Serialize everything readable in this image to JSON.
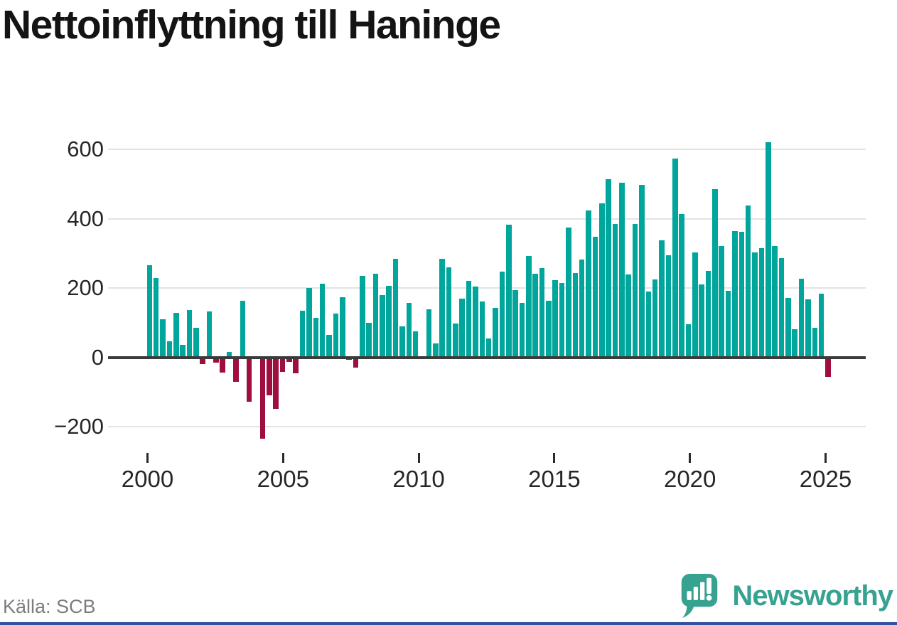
{
  "title": "Nettoinflyttning till Haninge",
  "source": "Källa: SCB",
  "brand": {
    "name": "Newsworthy",
    "color": "#38a291"
  },
  "colors": {
    "positive": "#00a59c",
    "negative": "#a00d3f",
    "grid": "#e3e3e3",
    "axis": "#3b3b3b",
    "tick_text": "#262626",
    "title_text": "#141414",
    "source_text": "#7d7d7d",
    "footer_strip": "#35519f"
  },
  "chart_data": {
    "type": "bar",
    "title": "Nettoinflyttning till Haninge",
    "frequency": "quarterly",
    "quarters": [
      "2000Q1",
      "2000Q2",
      "2000Q3",
      "2000Q4",
      "2001Q1",
      "2001Q2",
      "2001Q3",
      "2001Q4",
      "2002Q1",
      "2002Q2",
      "2002Q3",
      "2002Q4",
      "2003Q1",
      "2003Q2",
      "2003Q3",
      "2003Q4",
      "2004Q1",
      "2004Q2",
      "2004Q3",
      "2004Q4",
      "2005Q1",
      "2005Q2",
      "2005Q3",
      "2005Q4",
      "2006Q1",
      "2006Q2",
      "2006Q3",
      "2006Q4",
      "2007Q1",
      "2007Q2",
      "2007Q3",
      "2007Q4",
      "2008Q1",
      "2008Q2",
      "2008Q3",
      "2008Q4",
      "2009Q1",
      "2009Q2",
      "2009Q3",
      "2009Q4",
      "2010Q1",
      "2010Q2",
      "2010Q3",
      "2010Q4",
      "2011Q1",
      "2011Q2",
      "2011Q3",
      "2011Q4",
      "2012Q1",
      "2012Q2",
      "2012Q3",
      "2012Q4",
      "2013Q1",
      "2013Q2",
      "2013Q3",
      "2013Q4",
      "2014Q1",
      "2014Q2",
      "2014Q3",
      "2014Q4",
      "2015Q1",
      "2015Q2",
      "2015Q3",
      "2015Q4",
      "2016Q1",
      "2016Q2",
      "2016Q3",
      "2016Q4",
      "2017Q1",
      "2017Q2",
      "2017Q3",
      "2017Q4",
      "2018Q1",
      "2018Q2",
      "2018Q3",
      "2018Q4",
      "2019Q1",
      "2019Q2",
      "2019Q3",
      "2019Q4",
      "2020Q1",
      "2020Q2",
      "2020Q3",
      "2020Q4",
      "2021Q1",
      "2021Q2",
      "2021Q3",
      "2021Q4",
      "2022Q1",
      "2022Q2",
      "2022Q3",
      "2022Q4",
      "2023Q1",
      "2023Q2",
      "2023Q3",
      "2023Q4",
      "2024Q1",
      "2024Q2",
      "2024Q3",
      "2024Q4",
      "2025Q1",
      "2025Q2",
      "2025Q3"
    ],
    "values": [
      266,
      228,
      110,
      46,
      129,
      35,
      136,
      85,
      -20,
      133,
      -16,
      -45,
      15,
      -70,
      163,
      -128,
      0,
      -234,
      -110,
      -148,
      -42,
      -13,
      -47,
      135,
      200,
      113,
      212,
      64,
      127,
      173,
      -8,
      -29,
      235,
      100,
      242,
      179,
      207,
      284,
      90,
      156,
      74,
      0,
      139,
      39,
      285,
      259,
      97,
      169,
      220,
      205,
      161,
      55,
      142,
      248,
      382,
      193,
      156,
      292,
      241,
      257,
      164,
      222,
      215,
      375,
      244,
      282,
      424,
      347,
      444,
      514,
      384,
      504,
      238,
      385,
      497,
      189,
      225,
      337,
      295,
      573,
      414,
      96,
      303,
      211,
      250,
      485,
      322,
      191,
      365,
      363,
      437,
      302,
      315,
      620,
      321,
      286,
      172,
      82,
      226,
      167,
      85,
      183,
      -56
    ],
    "y_ticks": [
      600,
      400,
      200,
      0,
      -200
    ],
    "y_tick_labels": [
      "600",
      "400",
      "200",
      "0",
      "−200"
    ],
    "x_ticks": [
      2000,
      2005,
      2010,
      2015,
      2020,
      2025
    ],
    "ylim": [
      -260,
      650
    ],
    "grid": true,
    "legend": false
  }
}
